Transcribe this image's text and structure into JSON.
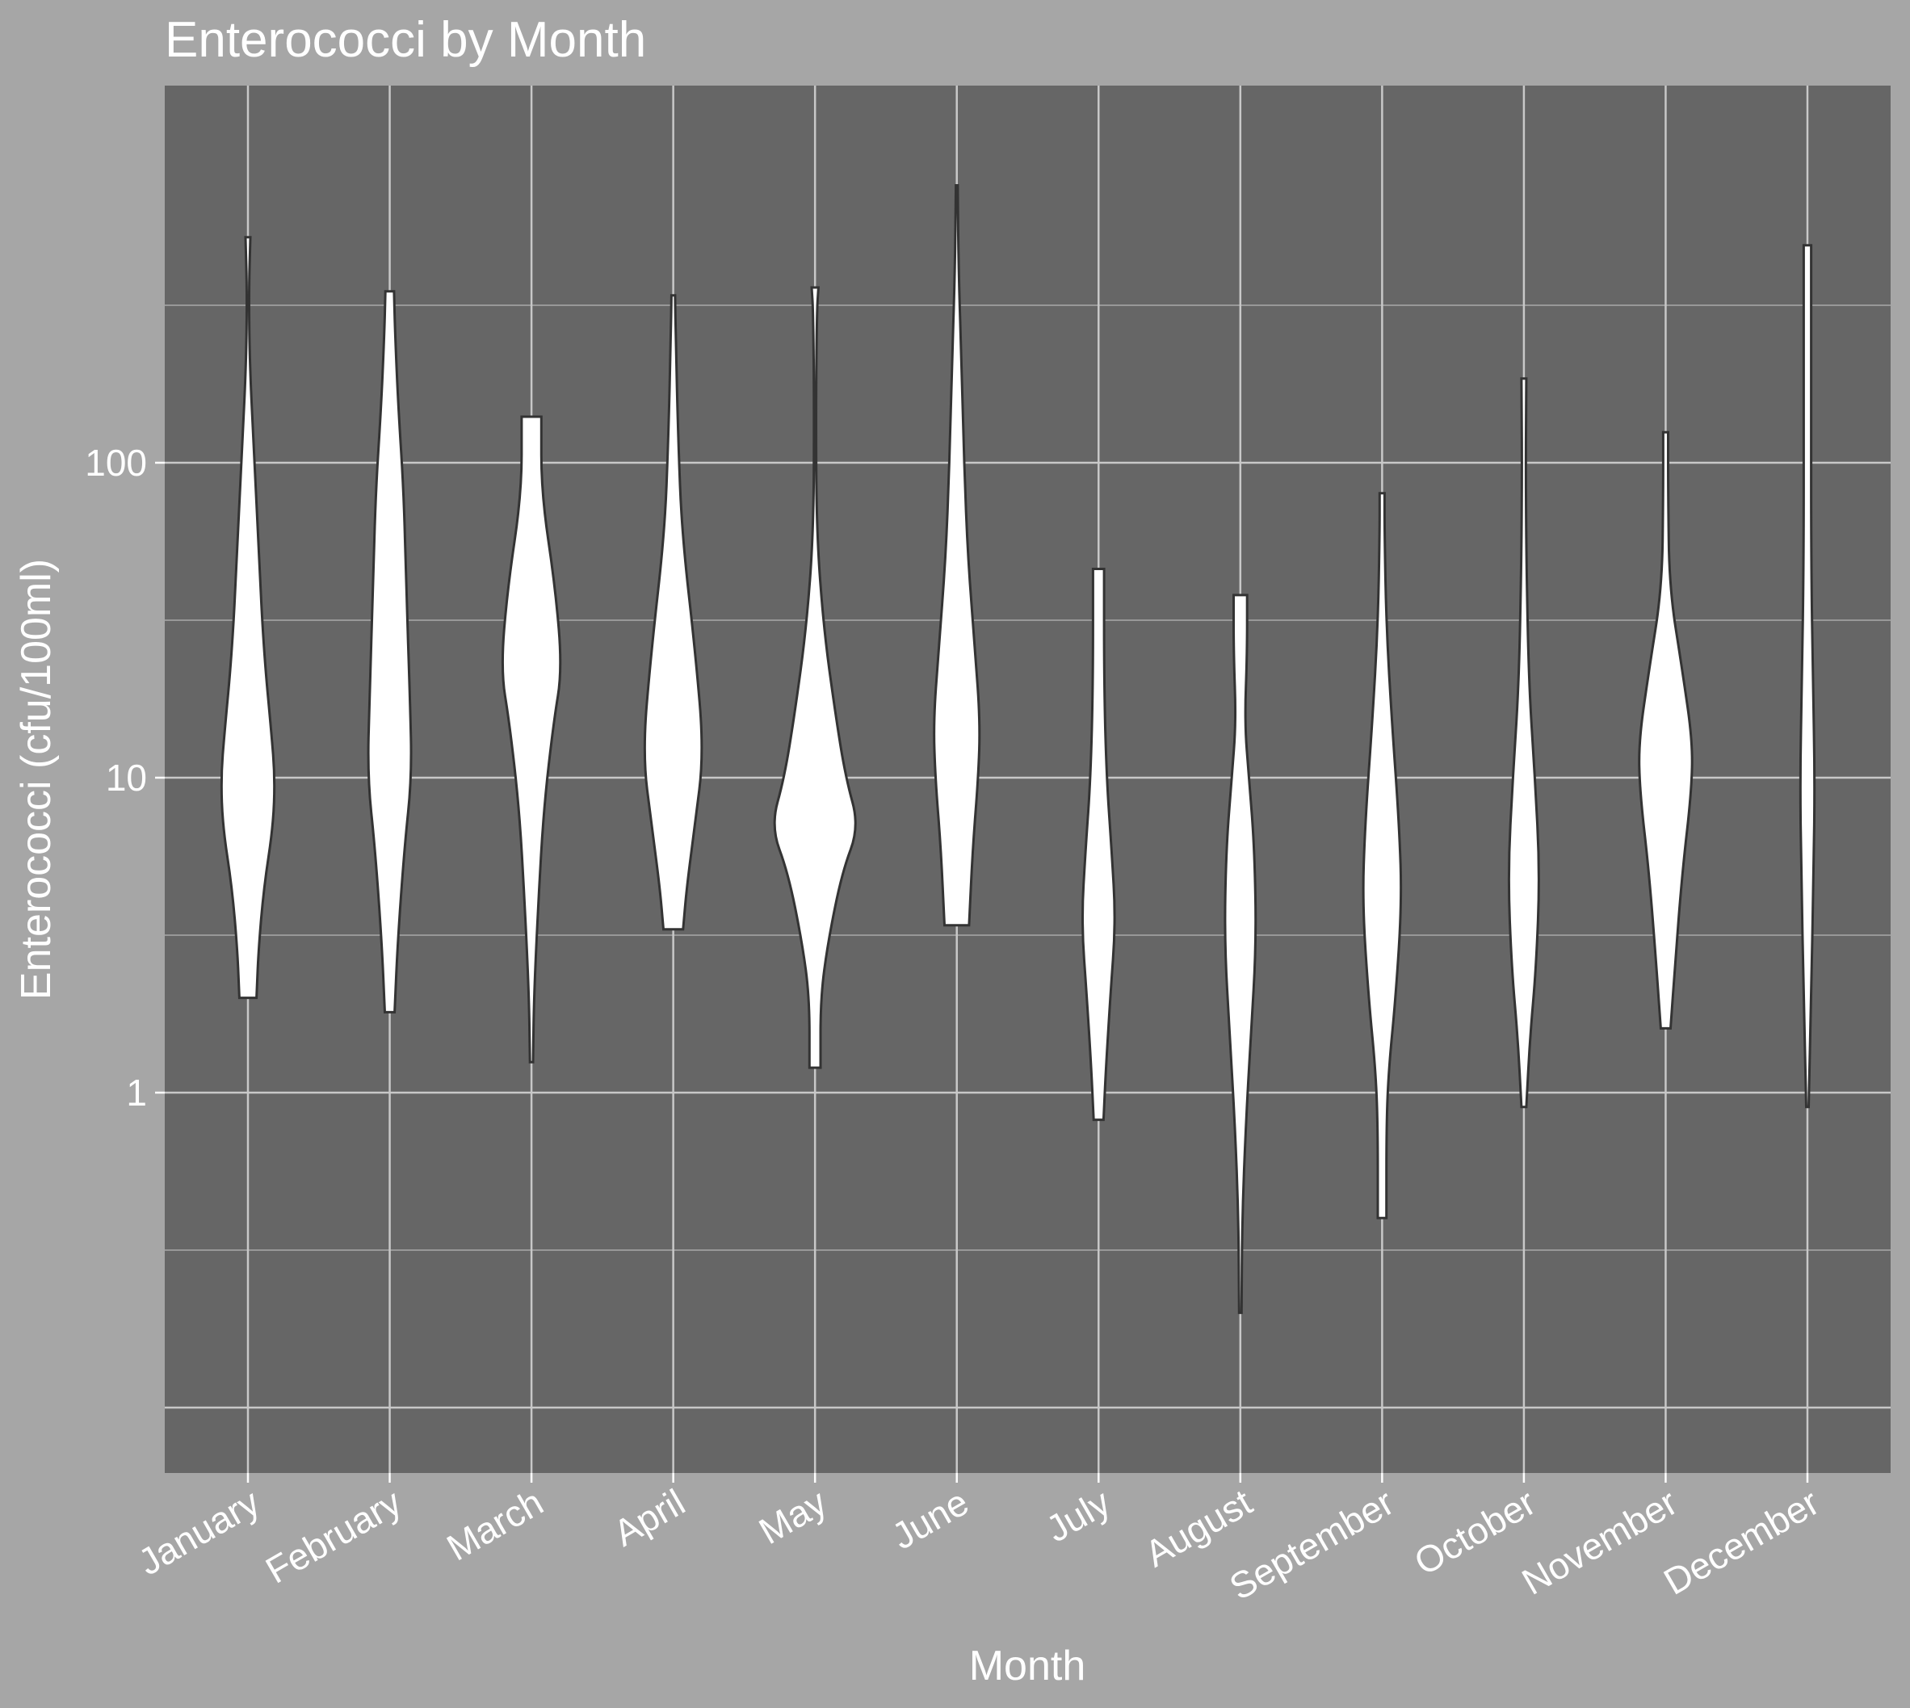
{
  "chart_data": {
    "type": "violin",
    "title": "Enterococci by Month",
    "xlabel": "Month",
    "ylabel": "Enterococci (cfu/100ml)",
    "y_scale": "log10",
    "ylim": [
      0.0316,
      1000
    ],
    "y_ticks": [
      1,
      10,
      100
    ],
    "y_tick_labels": [
      "1",
      "10",
      "100"
    ],
    "grid": true,
    "fill_color": "#ffffff",
    "outline_color": "#333333",
    "panel_color": "#666666",
    "background_color": "#a6a6a6",
    "categories": [
      "January",
      "February",
      "March",
      "April",
      "May",
      "June",
      "July",
      "August",
      "September",
      "October",
      "November",
      "December"
    ],
    "violins": [
      {
        "category": "January",
        "min": 2.0,
        "max": 520,
        "profile": [
          [
            2.0,
            0.28
          ],
          [
            2.8,
            0.34
          ],
          [
            4.5,
            0.52
          ],
          [
            7,
            0.82
          ],
          [
            10,
            0.88
          ],
          [
            14,
            0.76
          ],
          [
            25,
            0.52
          ],
          [
            50,
            0.36
          ],
          [
            100,
            0.22
          ],
          [
            200,
            0.06
          ],
          [
            350,
            0.03
          ],
          [
            520,
            0.08
          ]
        ]
      },
      {
        "category": "February",
        "min": 1.8,
        "max": 350,
        "profile": [
          [
            1.8,
            0.16
          ],
          [
            3,
            0.26
          ],
          [
            6,
            0.48
          ],
          [
            10,
            0.72
          ],
          [
            18,
            0.66
          ],
          [
            40,
            0.54
          ],
          [
            80,
            0.46
          ],
          [
            150,
            0.28
          ],
          [
            250,
            0.18
          ],
          [
            350,
            0.14
          ]
        ]
      },
      {
        "category": "March",
        "min": 1.25,
        "max": 140,
        "profile": [
          [
            1.25,
            0.05
          ],
          [
            2,
            0.08
          ],
          [
            4,
            0.22
          ],
          [
            8,
            0.4
          ],
          [
            15,
            0.72
          ],
          [
            22,
            1.0
          ],
          [
            40,
            0.78
          ],
          [
            80,
            0.32
          ],
          [
            140,
            0.32
          ]
        ]
      },
      {
        "category": "April",
        "min": 3.3,
        "max": 340,
        "profile": [
          [
            3.3,
            0.32
          ],
          [
            4.5,
            0.44
          ],
          [
            7,
            0.7
          ],
          [
            12,
            1.0
          ],
          [
            25,
            0.72
          ],
          [
            60,
            0.28
          ],
          [
            120,
            0.16
          ],
          [
            250,
            0.08
          ],
          [
            340,
            0.06
          ]
        ]
      },
      {
        "category": "May",
        "min": 1.2,
        "max": 360,
        "profile": [
          [
            1.2,
            0.18
          ],
          [
            2,
            0.18
          ],
          [
            3,
            0.42
          ],
          [
            5,
            0.88
          ],
          [
            7,
            1.44
          ],
          [
            10,
            1.0
          ],
          [
            16,
            0.66
          ],
          [
            30,
            0.28
          ],
          [
            60,
            0.05
          ],
          [
            150,
            0.03
          ],
          [
            300,
            0.06
          ],
          [
            360,
            0.11
          ]
        ]
      },
      {
        "category": "June",
        "min": 3.4,
        "max": 760,
        "profile": [
          [
            3.4,
            0.4
          ],
          [
            6,
            0.52
          ],
          [
            10,
            0.7
          ],
          [
            15,
            0.76
          ],
          [
            25,
            0.6
          ],
          [
            50,
            0.36
          ],
          [
            100,
            0.24
          ],
          [
            200,
            0.16
          ],
          [
            400,
            0.06
          ],
          [
            760,
            0.03
          ]
        ]
      },
      {
        "category": "July",
        "min": 0.82,
        "max": 46,
        "profile": [
          [
            0.82,
            0.16
          ],
          [
            1.2,
            0.24
          ],
          [
            2,
            0.38
          ],
          [
            3.5,
            0.56
          ],
          [
            6,
            0.42
          ],
          [
            10,
            0.26
          ],
          [
            20,
            0.18
          ],
          [
            46,
            0.18
          ]
        ]
      },
      {
        "category": "August",
        "min": 0.2,
        "max": 38,
        "profile": [
          [
            0.2,
            0.04
          ],
          [
            0.4,
            0.06
          ],
          [
            0.8,
            0.18
          ],
          [
            1.5,
            0.34
          ],
          [
            3,
            0.52
          ],
          [
            6,
            0.46
          ],
          [
            10,
            0.28
          ],
          [
            15,
            0.14
          ],
          [
            25,
            0.22
          ],
          [
            38,
            0.22
          ]
        ]
      },
      {
        "category": "September",
        "min": 0.4,
        "max": 80,
        "profile": [
          [
            0.4,
            0.14
          ],
          [
            0.8,
            0.14
          ],
          [
            1.2,
            0.22
          ],
          [
            2,
            0.44
          ],
          [
            4,
            0.64
          ],
          [
            7,
            0.56
          ],
          [
            15,
            0.32
          ],
          [
            30,
            0.14
          ],
          [
            60,
            0.08
          ],
          [
            80,
            0.08
          ]
        ]
      },
      {
        "category": "October",
        "min": 0.9,
        "max": 185,
        "profile": [
          [
            0.9,
            0.08
          ],
          [
            1.5,
            0.2
          ],
          [
            2.5,
            0.4
          ],
          [
            5,
            0.52
          ],
          [
            10,
            0.36
          ],
          [
            20,
            0.16
          ],
          [
            50,
            0.08
          ],
          [
            100,
            0.06
          ],
          [
            185,
            0.08
          ]
        ]
      },
      {
        "category": "November",
        "min": 1.6,
        "max": 125,
        "profile": [
          [
            1.6,
            0.16
          ],
          [
            2.5,
            0.3
          ],
          [
            5,
            0.54
          ],
          [
            9,
            0.84
          ],
          [
            13,
            0.88
          ],
          [
            22,
            0.54
          ],
          [
            40,
            0.12
          ],
          [
            80,
            0.08
          ],
          [
            125,
            0.08
          ]
        ]
      },
      {
        "category": "December",
        "min": 0.9,
        "max": 490,
        "profile": [
          [
            0.9,
            0.04
          ],
          [
            2,
            0.12
          ],
          [
            5,
            0.2
          ],
          [
            10,
            0.24
          ],
          [
            20,
            0.18
          ],
          [
            50,
            0.12
          ],
          [
            150,
            0.12
          ],
          [
            490,
            0.12
          ]
        ]
      }
    ]
  }
}
